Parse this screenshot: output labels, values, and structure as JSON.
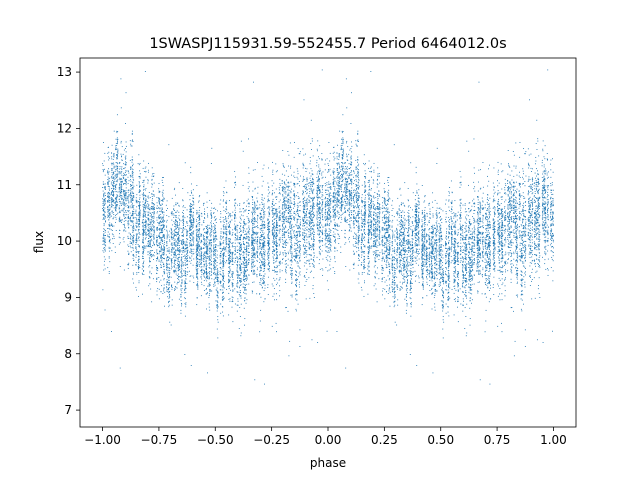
{
  "chart_data": {
    "type": "scatter",
    "title": "1SWASPJ115931.59-552455.7 Period 6464012.0s",
    "xlabel": "phase",
    "ylabel": "flux",
    "xlim": [
      -1.1,
      1.1
    ],
    "ylim": [
      6.7,
      13.25
    ],
    "x_ticks": [
      -1.0,
      -0.75,
      -0.5,
      -0.25,
      0.0,
      0.25,
      0.5,
      0.75,
      1.0
    ],
    "x_tick_labels": [
      "−1.00",
      "−0.75",
      "−0.50",
      "−0.25",
      "0.00",
      "0.25",
      "0.50",
      "0.75",
      "1.00"
    ],
    "y_ticks": [
      7,
      8,
      9,
      10,
      11,
      12,
      13
    ],
    "y_tick_labels": [
      "7",
      "8",
      "9",
      "10",
      "11",
      "12",
      "13"
    ],
    "grid": false,
    "legend": "none",
    "marker_color": "#1f77b4",
    "series": [
      {
        "points_per_half_phase": 7000,
        "profile": [
          {
            "phase": -0.5,
            "median_flux": 9.9,
            "spread": 0.35
          },
          {
            "phase": -0.4,
            "median_flux": 9.85,
            "spread": 0.45
          },
          {
            "phase": -0.3,
            "median_flux": 10.0,
            "spread": 0.4
          },
          {
            "phase": -0.2,
            "median_flux": 10.1,
            "spread": 0.45
          },
          {
            "phase": -0.1,
            "median_flux": 10.2,
            "spread": 0.5
          },
          {
            "phase": -0.05,
            "median_flux": 10.6,
            "spread": 0.45
          },
          {
            "phase": 0.0,
            "median_flux": 10.4,
            "spread": 0.45
          },
          {
            "phase": 0.07,
            "median_flux": 10.9,
            "spread": 0.4
          },
          {
            "phase": 0.15,
            "median_flux": 10.5,
            "spread": 0.45
          },
          {
            "phase": 0.25,
            "median_flux": 10.2,
            "spread": 0.4
          },
          {
            "phase": 0.3,
            "median_flux": 9.9,
            "spread": 0.4
          },
          {
            "phase": 0.4,
            "median_flux": 9.85,
            "spread": 0.35
          },
          {
            "phase": 0.5,
            "median_flux": 9.9,
            "spread": 0.35
          }
        ]
      }
    ]
  }
}
